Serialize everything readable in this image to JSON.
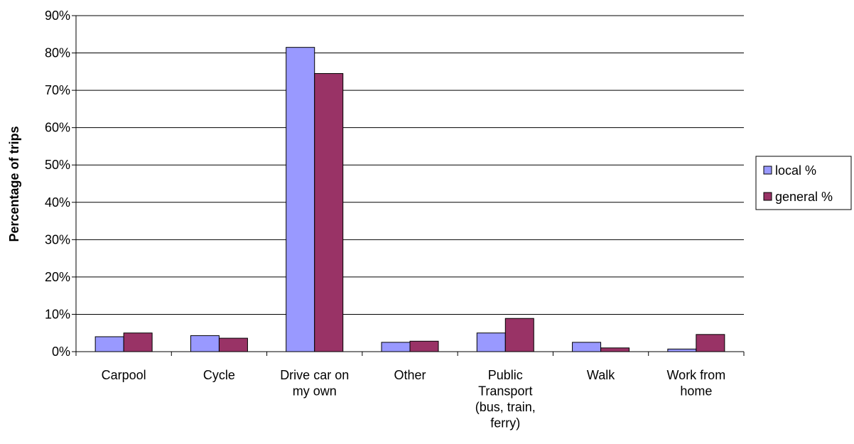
{
  "chart_data": {
    "type": "bar",
    "title": "",
    "xlabel": "",
    "ylabel": "Percentage of trips",
    "ylim": [
      0,
      90
    ],
    "y_ticks": [
      "0%",
      "10%",
      "20%",
      "30%",
      "40%",
      "50%",
      "60%",
      "70%",
      "80%",
      "90%"
    ],
    "grid": "horizontal",
    "legend_position": "right",
    "categories": [
      [
        "Carpool"
      ],
      [
        "Cycle"
      ],
      [
        "Drive car on",
        "my own"
      ],
      [
        "Other"
      ],
      [
        "Public",
        "Transport",
        "(bus, train,",
        "ferry)"
      ],
      [
        "Walk"
      ],
      [
        "Work from",
        "home"
      ]
    ],
    "series": [
      {
        "name": "local %",
        "color": "#9999ff",
        "values": [
          4.0,
          4.3,
          81.5,
          2.5,
          5.0,
          2.5,
          0.7
        ]
      },
      {
        "name": "general %",
        "color": "#993366",
        "values": [
          5.0,
          3.6,
          74.5,
          2.8,
          8.9,
          1.0,
          4.6
        ]
      }
    ]
  }
}
